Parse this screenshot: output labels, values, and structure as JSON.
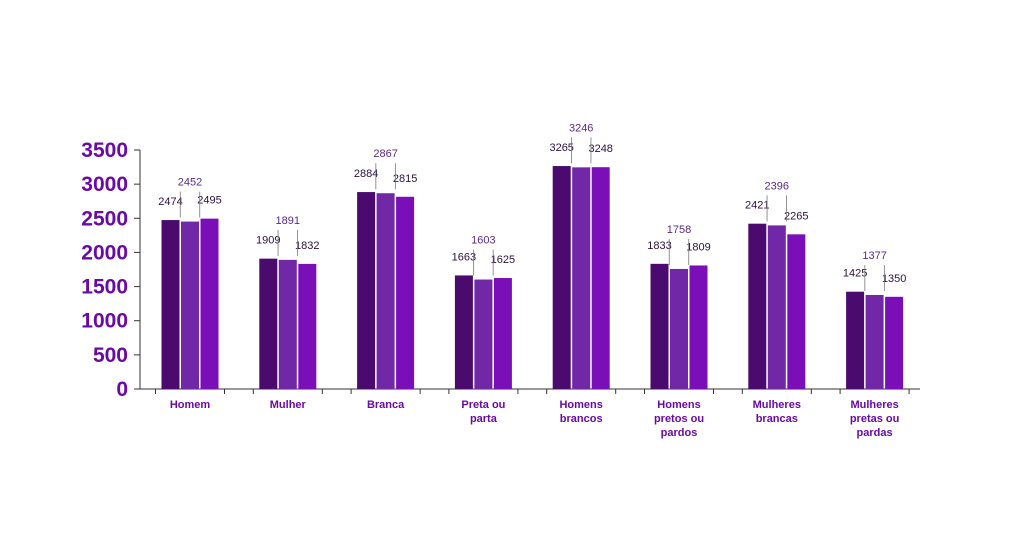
{
  "chart_data": {
    "type": "bar",
    "categories": [
      [
        "Homem"
      ],
      [
        "Mulher"
      ],
      [
        "Branca"
      ],
      [
        "Preta ou",
        "parta"
      ],
      [
        "Homens",
        "brancos"
      ],
      [
        "Homens",
        "pretos ou",
        "pardos"
      ],
      [
        "Mulheres",
        "brancas"
      ],
      [
        "Mulheres",
        "pretas ou",
        "pardas"
      ]
    ],
    "series": [
      {
        "values": [
          2474,
          1909,
          2884,
          1663,
          3265,
          1833,
          2421,
          1425
        ]
      },
      {
        "values": [
          2452,
          1891,
          2867,
          1603,
          3246,
          1758,
          2396,
          1377
        ]
      },
      {
        "values": [
          2495,
          1832,
          2815,
          1625,
          3248,
          1809,
          2265,
          1350
        ]
      }
    ],
    "yticks": [
      0,
      500,
      1000,
      1500,
      2000,
      2500,
      3000,
      3500
    ],
    "ylim": [
      0,
      3500
    ],
    "grid": false,
    "title": "",
    "xlabel": "",
    "ylabel": ""
  },
  "colors": {
    "series": [
      "#4b0a6e",
      "#7028a6",
      "#7a0fb8"
    ],
    "axis_text": "#6a0aa6"
  }
}
